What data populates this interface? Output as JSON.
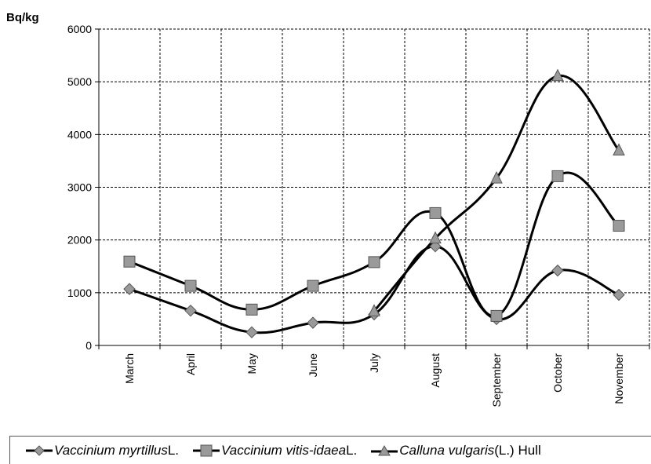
{
  "chart_data": {
    "type": "line",
    "ylabel": "Bq/kg",
    "ylim": [
      0,
      6000
    ],
    "yticks": [
      "0",
      "1000",
      "2000",
      "3000",
      "4000",
      "5000",
      "6000"
    ],
    "categories": [
      "March",
      "April",
      "May",
      "June",
      "July",
      "August",
      "September",
      "October",
      "November"
    ],
    "grid": true,
    "legend_position": "bottom",
    "series": [
      {
        "name_italic": "Vaccinium myrtillus",
        "name_rest": " L.",
        "marker": "diamond",
        "x": [
          "March",
          "April",
          "May",
          "June",
          "July",
          "August",
          "September",
          "October",
          "November"
        ],
        "values": [
          1070,
          660,
          250,
          430,
          590,
          1880,
          500,
          1420,
          960
        ]
      },
      {
        "name_italic": "Vaccinium vitis-idaea",
        "name_rest": " L.",
        "marker": "square",
        "x": [
          "March",
          "April",
          "May",
          "June",
          "July",
          "August",
          "September",
          "October",
          "November"
        ],
        "values": [
          1590,
          1130,
          680,
          1130,
          1580,
          2510,
          560,
          3210,
          2270
        ]
      },
      {
        "name_italic": "Calluna vulgaris",
        "name_rest": " (L.) Hull",
        "marker": "triangle",
        "x": [
          "July",
          "August",
          "September",
          "October",
          "November"
        ],
        "values": [
          650,
          2030,
          3170,
          5110,
          3700
        ]
      }
    ]
  }
}
